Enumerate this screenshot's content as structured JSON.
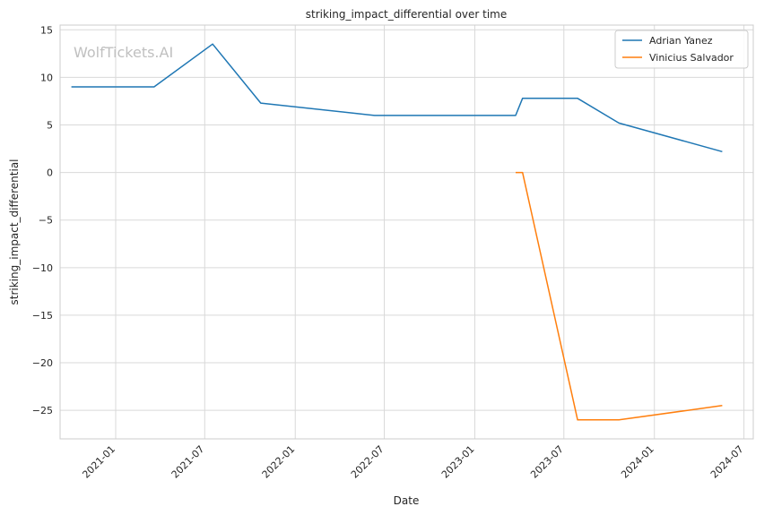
{
  "chart_data": {
    "type": "line",
    "title": "striking_impact_differential over time",
    "xlabel": "Date",
    "ylabel": "striking_impact_differential",
    "watermark": "WolfTickets.AI",
    "x_ticks": [
      "2021-01",
      "2021-07",
      "2022-01",
      "2022-07",
      "2023-01",
      "2023-07",
      "2024-01",
      "2024-07"
    ],
    "y_ticks": [
      15,
      10,
      5,
      0,
      -5,
      -10,
      -15,
      -20,
      -25
    ],
    "ylim": [
      -28,
      15.5
    ],
    "xlim": [
      "2020-09-10",
      "2024-07-20"
    ],
    "grid": true,
    "legend_position": "top-right",
    "series": [
      {
        "name": "Adrian Yanez",
        "color": "#1f77b4",
        "points": [
          [
            "2020-10-03",
            9.0
          ],
          [
            "2021-03-20",
            9.0
          ],
          [
            "2021-07-17",
            13.5
          ],
          [
            "2021-10-23",
            7.3
          ],
          [
            "2022-06-11",
            6.0
          ],
          [
            "2023-03-25",
            6.0
          ],
          [
            "2023-04-08",
            7.8
          ],
          [
            "2023-07-29",
            7.8
          ],
          [
            "2023-10-21",
            5.2
          ],
          [
            "2024-05-18",
            2.2
          ]
        ]
      },
      {
        "name": "Vinicius Salvador",
        "color": "#ff7f0e",
        "points": [
          [
            "2023-03-25",
            0.0
          ],
          [
            "2023-04-08",
            0.0
          ],
          [
            "2023-07-29",
            -26.0
          ],
          [
            "2023-10-21",
            -26.0
          ],
          [
            "2024-05-18",
            -24.5
          ]
        ]
      }
    ]
  }
}
